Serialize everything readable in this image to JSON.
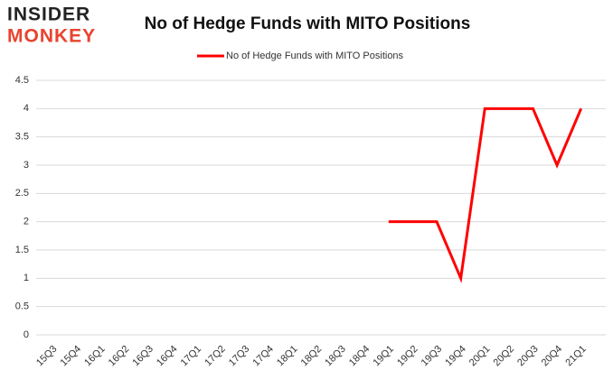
{
  "logo": {
    "line1": "INSIDER",
    "line2": "MONKEY"
  },
  "chart_data": {
    "type": "line",
    "title": "No of Hedge Funds with MITO Positions",
    "categories": [
      "15Q3",
      "15Q4",
      "16Q1",
      "16Q2",
      "16Q3",
      "16Q4",
      "17Q1",
      "17Q2",
      "17Q3",
      "17Q4",
      "18Q1",
      "18Q2",
      "18Q3",
      "18Q4",
      "19Q1",
      "19Q2",
      "19Q3",
      "19Q4",
      "20Q1",
      "20Q2",
      "20Q3",
      "20Q4",
      "21Q1"
    ],
    "series": [
      {
        "name": "No of Hedge Funds with MITO Positions",
        "color": "#ff0000",
        "values": [
          null,
          null,
          null,
          null,
          null,
          null,
          null,
          null,
          null,
          null,
          null,
          null,
          null,
          null,
          2,
          2,
          2,
          1,
          4,
          4,
          4,
          3,
          4
        ]
      }
    ],
    "ylim": [
      0,
      4.5
    ],
    "yticks": [
      0,
      0.5,
      1,
      1.5,
      2,
      2.5,
      3,
      3.5,
      4,
      4.5
    ],
    "grid": true,
    "legend": "top"
  }
}
